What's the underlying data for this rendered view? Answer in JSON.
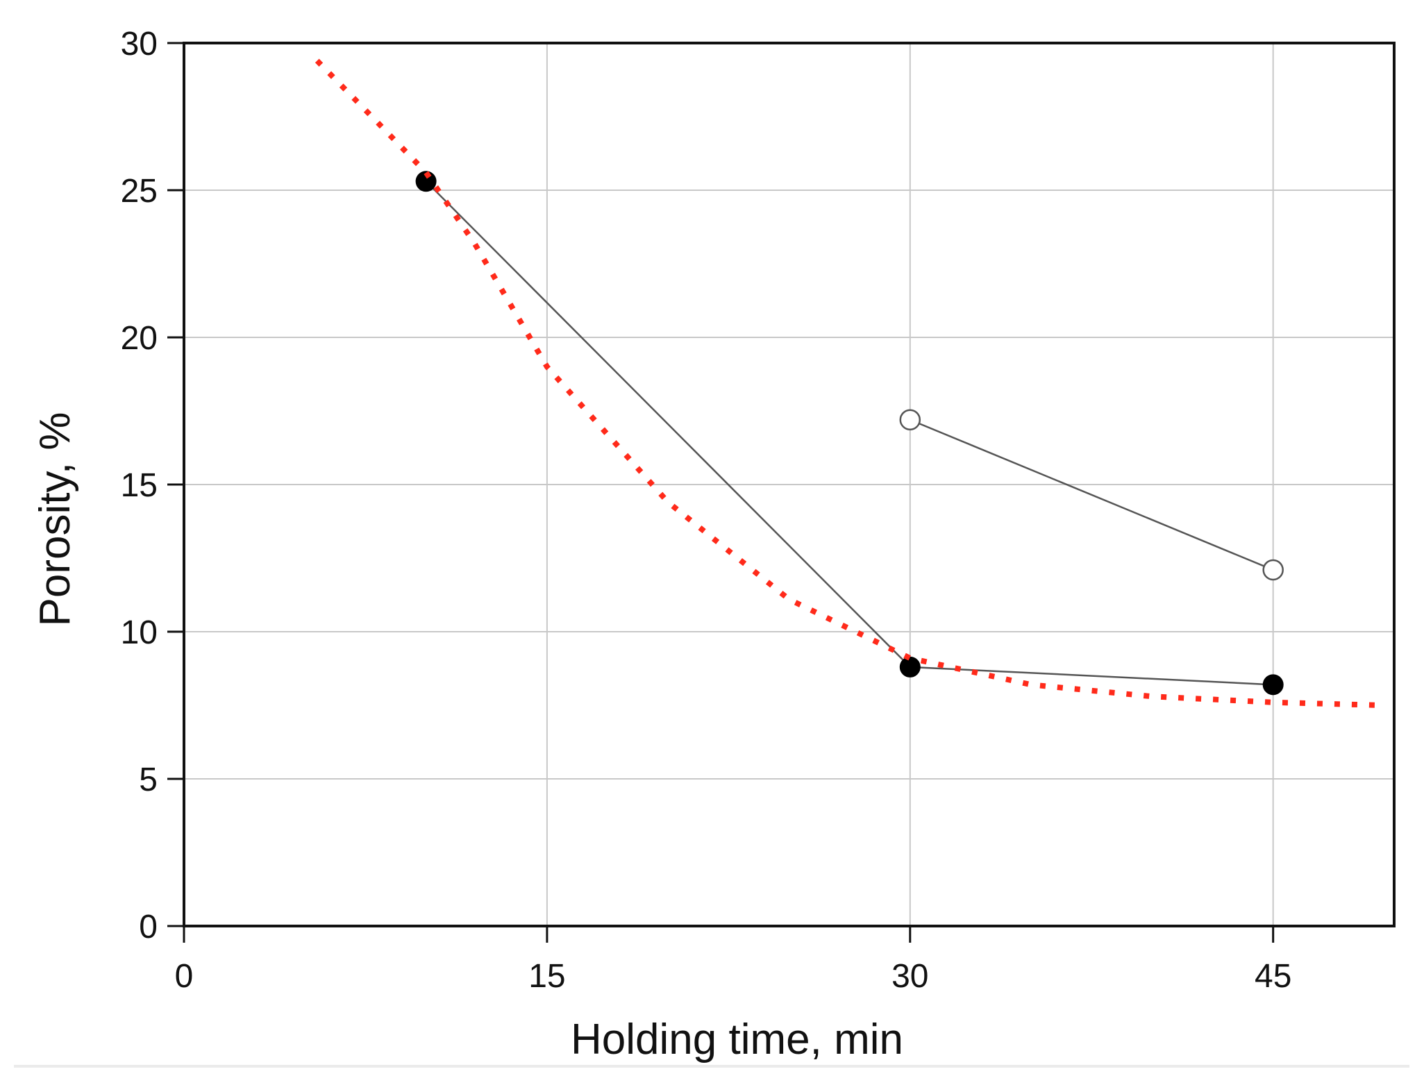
{
  "chart_data": {
    "type": "line",
    "title": "",
    "xlabel": "Holding time, min",
    "ylabel": "Porosity, %",
    "xlim": [
      0,
      50
    ],
    "ylim": [
      0,
      30
    ],
    "xticks": [
      0,
      15,
      30,
      45
    ],
    "yticks": [
      0,
      5,
      10,
      15,
      20,
      25,
      30
    ],
    "grid": true,
    "legend": "none",
    "series": [
      {
        "marker": "filled-circle",
        "line": "solid",
        "color": "#555555",
        "points": [
          {
            "x": 10,
            "y": 25.3
          },
          {
            "x": 30,
            "y": 8.8
          },
          {
            "x": 45,
            "y": 8.2
          }
        ]
      },
      {
        "marker": "open-circle",
        "line": "solid",
        "color": "#555555",
        "points": [
          {
            "x": 30,
            "y": 17.2
          },
          {
            "x": 45,
            "y": 12.1
          }
        ]
      },
      {
        "marker": "none",
        "line": "dotted",
        "color": "#ff2a1a",
        "points": [
          {
            "x": 5.5,
            "y": 29.4
          },
          {
            "x": 8,
            "y": 27.3
          },
          {
            "x": 10,
            "y": 25.6
          },
          {
            "x": 12,
            "y": 23.2
          },
          {
            "x": 15,
            "y": 19.0
          },
          {
            "x": 20,
            "y": 14.4
          },
          {
            "x": 25,
            "y": 11.1
          },
          {
            "x": 30,
            "y": 9.1
          },
          {
            "x": 35,
            "y": 8.2
          },
          {
            "x": 40,
            "y": 7.8
          },
          {
            "x": 45,
            "y": 7.6
          },
          {
            "x": 49.5,
            "y": 7.5
          }
        ]
      }
    ]
  }
}
